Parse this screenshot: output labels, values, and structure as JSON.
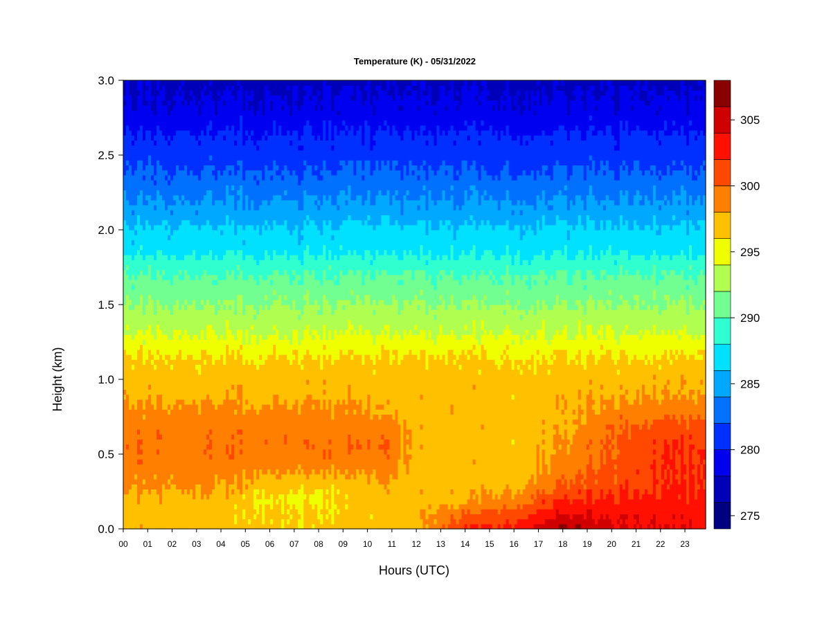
{
  "chart_data": {
    "type": "heatmap",
    "title": "Temperature (K) - 05/31/2022",
    "xlabel": "Hours (UTC)",
    "ylabel": "Height (km)",
    "x_ticks": [
      "00",
      "01",
      "02",
      "03",
      "04",
      "05",
      "06",
      "07",
      "08",
      "09",
      "10",
      "11",
      "12",
      "13",
      "14",
      "15",
      "16",
      "17",
      "18",
      "19",
      "20",
      "21",
      "22",
      "23"
    ],
    "xlim": [
      0,
      23.85
    ],
    "ylim": [
      0,
      3.0
    ],
    "y_ticks": [
      "0.0",
      "0.5",
      "1.0",
      "1.5",
      "2.0",
      "2.5",
      "3.0"
    ],
    "y_tick_values": [
      0,
      0.5,
      1.0,
      1.5,
      2.0,
      2.5,
      3.0
    ],
    "colorbar": {
      "levels": [
        274,
        276,
        278,
        280,
        282,
        284,
        286,
        288,
        290,
        292,
        294,
        296,
        298,
        300,
        302,
        304,
        306,
        308
      ],
      "colors": [
        "#000080",
        "#0000b8",
        "#0000f0",
        "#0030ff",
        "#0070ff",
        "#00a8ff",
        "#00e0ff",
        "#30ffd0",
        "#70ff90",
        "#b0ff50",
        "#f0ff00",
        "#ffc000",
        "#ff8000",
        "#ff4800",
        "#ff1000",
        "#d00000",
        "#880000"
      ],
      "ticks": [
        "275",
        "280",
        "285",
        "290",
        "295",
        "300",
        "305"
      ],
      "tick_values": [
        275,
        280,
        285,
        290,
        295,
        300,
        305
      ]
    },
    "profile_heights_km": [
      0.0,
      0.1,
      0.2,
      0.3,
      0.4,
      0.5,
      0.6,
      0.7,
      0.8,
      0.9,
      1.0,
      1.1,
      1.2,
      1.3,
      1.4,
      1.5,
      1.6,
      1.7,
      1.8,
      1.9,
      2.0,
      2.1,
      2.2,
      2.3,
      2.4,
      2.5,
      2.6,
      2.7,
      2.8,
      2.9,
      3.0
    ],
    "profiles": [
      {
        "hour": 0,
        "temps": [
          297,
          297,
          297,
          298.5,
          299,
          299.5,
          299.5,
          299,
          298.5,
          297.5,
          297,
          296.5,
          295.5,
          294,
          293,
          292,
          291,
          290,
          288.5,
          287,
          286.5,
          285,
          284,
          283,
          282,
          281,
          280.5,
          279.5,
          278.5,
          278,
          277.5
        ]
      },
      {
        "hour": 3,
        "temps": [
          297,
          297,
          297.5,
          298.5,
          299,
          299.5,
          299.5,
          299,
          298.5,
          297.5,
          297,
          296.5,
          295.5,
          294,
          293,
          292,
          291,
          290,
          288.5,
          287,
          286.5,
          285,
          284,
          283,
          282,
          281,
          280.5,
          279.5,
          278.5,
          278,
          277.5
        ]
      },
      {
        "hour": 6,
        "temps": [
          296.5,
          296.5,
          295.8,
          297.5,
          298.5,
          299.5,
          299.5,
          299,
          298.5,
          297.5,
          297,
          296.5,
          295.5,
          294,
          293,
          292,
          291,
          290,
          288.5,
          287,
          286.5,
          285,
          284,
          283,
          282,
          281,
          280.5,
          279.5,
          278.5,
          278,
          277.5
        ]
      },
      {
        "hour": 8,
        "temps": [
          296.5,
          296,
          295.5,
          296.5,
          298.5,
          299.5,
          299.5,
          299,
          298.5,
          297.5,
          297,
          296.5,
          295.5,
          294,
          293,
          292,
          291,
          290,
          288.5,
          287,
          286.5,
          285,
          284,
          283,
          282,
          281,
          280.5,
          279.5,
          278.5,
          278,
          277.5
        ]
      },
      {
        "hour": 11,
        "temps": [
          297,
          297,
          297,
          297.5,
          298.5,
          299.5,
          299.5,
          298.5,
          297.5,
          297,
          296.8,
          296.5,
          295.5,
          294,
          293,
          292,
          291,
          290,
          288.5,
          287,
          286.5,
          285,
          284,
          283,
          282,
          281,
          280.5,
          279.5,
          278.5,
          278,
          277.5
        ]
      },
      {
        "hour": 12,
        "temps": [
          297.5,
          297,
          297,
          297,
          297,
          297,
          297,
          297,
          297,
          297,
          297,
          296.5,
          295.5,
          294,
          293,
          292,
          291,
          290,
          288.5,
          287,
          286.5,
          285,
          284,
          283,
          282,
          281,
          280.5,
          279.5,
          278.5,
          278,
          277.5
        ]
      },
      {
        "hour": 14,
        "temps": [
          302,
          300,
          297.5,
          297,
          297,
          297,
          297,
          297,
          297,
          297,
          297,
          296.5,
          295.5,
          294,
          293,
          292,
          291,
          290,
          288.5,
          287,
          286.5,
          285,
          284,
          283,
          282,
          281,
          280.5,
          279.5,
          278.5,
          278,
          277.5
        ]
      },
      {
        "hour": 16,
        "temps": [
          303,
          301,
          299,
          297.5,
          297,
          297,
          297,
          297,
          297,
          297,
          297,
          296.5,
          295.5,
          294,
          293,
          292,
          291,
          290,
          288.5,
          287,
          286.5,
          285,
          284,
          283,
          282,
          281,
          280.5,
          279.5,
          278.5,
          278,
          277.5
        ]
      },
      {
        "hour": 18,
        "temps": [
          306.5,
          304,
          302,
          300,
          299,
          298.5,
          298,
          297.5,
          297.5,
          297.5,
          297,
          296.5,
          295.5,
          294,
          293,
          292,
          291,
          290,
          288.5,
          287,
          286.5,
          285,
          284,
          283,
          282,
          281,
          280.5,
          279.5,
          278.5,
          278,
          277.5
        ]
      },
      {
        "hour": 20,
        "temps": [
          304.5,
          303.5,
          302,
          301,
          300.5,
          300,
          300,
          299.5,
          298.5,
          297.5,
          297,
          296.5,
          295.5,
          294,
          293,
          292,
          291,
          290,
          288.5,
          287,
          286.5,
          285,
          284,
          283,
          282,
          281,
          280.5,
          279.5,
          278.5,
          278,
          277.5
        ]
      },
      {
        "hour": 22,
        "temps": [
          304,
          303.5,
          302.5,
          302,
          302,
          302,
          301.5,
          300.5,
          299,
          298,
          297.5,
          296.5,
          295.5,
          294,
          293,
          292,
          291,
          290,
          288.5,
          287,
          286.5,
          285,
          284,
          283,
          282,
          281,
          280.5,
          279.5,
          278.5,
          278,
          277.5
        ]
      },
      {
        "hour": 23.85,
        "temps": [
          303.5,
          303,
          302.5,
          302,
          302,
          302,
          301.5,
          300.5,
          299,
          298,
          297.5,
          296.5,
          295.5,
          294,
          293,
          292,
          291,
          290,
          288.5,
          287,
          286.5,
          285,
          284,
          283,
          282,
          281,
          280.5,
          279.5,
          278.5,
          278,
          277.5
        ]
      }
    ]
  }
}
